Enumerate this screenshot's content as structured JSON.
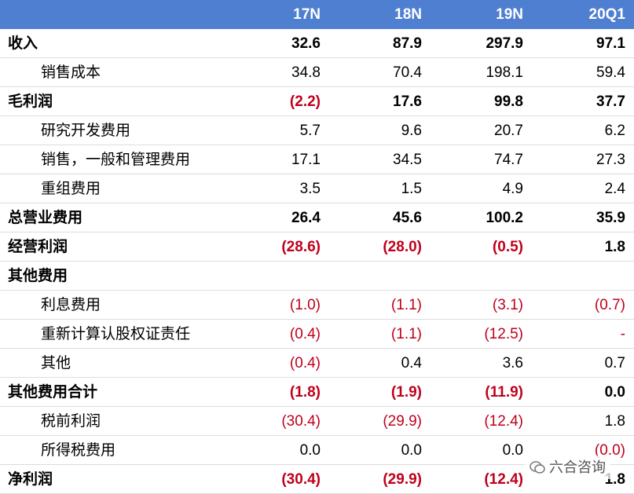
{
  "table": {
    "header": [
      "17N",
      "18N",
      "19N",
      "20Q1"
    ],
    "header_color": "#4f7fd0",
    "negative_color": "#c0001b",
    "rows": [
      {
        "label": "收入",
        "bold": true,
        "cells": [
          "32.6",
          "87.9",
          "297.9",
          "97.1"
        ]
      },
      {
        "label": "销售成本",
        "bold": false,
        "cells": [
          "34.8",
          "70.4",
          "198.1",
          "59.4"
        ]
      },
      {
        "label": "毛利润",
        "bold": true,
        "cells": [
          "(2.2)",
          "17.6",
          "99.8",
          "37.7"
        ]
      },
      {
        "label": "研究开发费用",
        "bold": false,
        "cells": [
          "5.7",
          "9.6",
          "20.7",
          "6.2"
        ]
      },
      {
        "label": "销售，一般和管理费用",
        "bold": false,
        "cells": [
          "17.1",
          "34.5",
          "74.7",
          "27.3"
        ]
      },
      {
        "label": "重组费用",
        "bold": false,
        "cells": [
          "3.5",
          "1.5",
          "4.9",
          "2.4"
        ]
      },
      {
        "label": "总营业费用",
        "bold": true,
        "cells": [
          "26.4",
          "45.6",
          "100.2",
          "35.9"
        ]
      },
      {
        "label": "经营利润",
        "bold": true,
        "cells": [
          "(28.6)",
          "(28.0)",
          "(0.5)",
          "1.8"
        ]
      },
      {
        "label": "其他费用",
        "bold": true,
        "cells": []
      },
      {
        "label": "利息费用",
        "bold": false,
        "cells": [
          "(1.0)",
          "(1.1)",
          "(3.1)",
          "(0.7)"
        ]
      },
      {
        "label": "重新计算认股权证责任",
        "bold": false,
        "cells": [
          "(0.4)",
          "(1.1)",
          "(12.5)",
          "-"
        ]
      },
      {
        "label": "其他",
        "bold": false,
        "cells": [
          "(0.4)",
          "0.4",
          "3.6",
          "0.7"
        ]
      },
      {
        "label": "其他费用合计",
        "bold": true,
        "cells": [
          "(1.8)",
          "(1.9)",
          "(11.9)",
          "0.0"
        ]
      },
      {
        "label": "税前利润",
        "bold": false,
        "cells": [
          "(30.4)",
          "(29.9)",
          "(12.4)",
          "1.8"
        ]
      },
      {
        "label": "所得税费用",
        "bold": false,
        "cells": [
          "0.0",
          "0.0",
          "0.0",
          "(0.0)"
        ]
      },
      {
        "label": "净利润",
        "bold": true,
        "cells": [
          "(30.4)",
          "(29.9)",
          "(12.4)",
          "1.8"
        ]
      }
    ]
  },
  "watermark": "六合咨询"
}
